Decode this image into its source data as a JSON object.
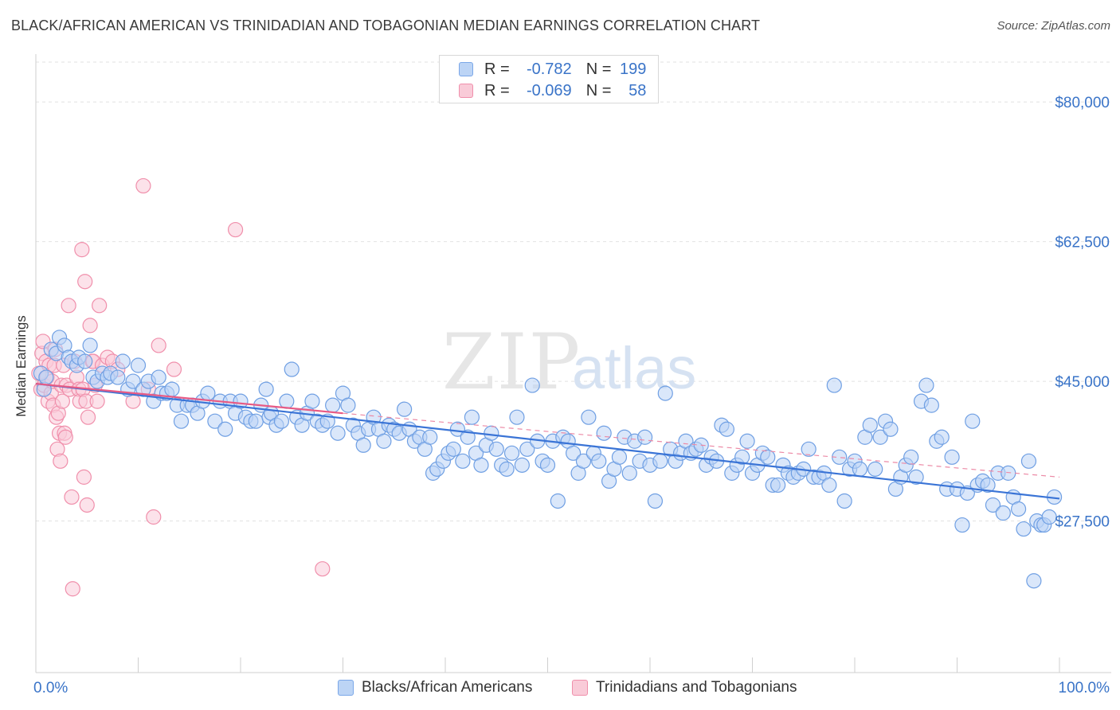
{
  "header": {
    "title": "BLACK/AFRICAN AMERICAN VS TRINIDADIAN AND TOBAGONIAN MEDIAN EARNINGS CORRELATION CHART",
    "source": "Source: ZipAtlas.com"
  },
  "watermark": {
    "zip": "ZIP",
    "atlas": "atlas"
  },
  "legend": {
    "r_label": "R =",
    "n_label": "N =",
    "series": [
      {
        "r": "-0.782",
        "n": "199",
        "color": "#7aa7e8",
        "fill": "#bcd4f5"
      },
      {
        "r": "-0.069",
        "n": "58",
        "color": "#f08fab",
        "fill": "#f9cbd8"
      }
    ]
  },
  "bottom_legend": {
    "blue": "Blacks/African Americans",
    "pink": "Trinidadians and Tobagonians"
  },
  "chart_data": {
    "type": "scatter",
    "title": "BLACK/AFRICAN AMERICAN VS TRINIDADIAN AND TOBAGONIAN MEDIAN EARNINGS CORRELATION CHART",
    "xlabel": "",
    "ylabel": "Median Earnings",
    "xlim": [
      0,
      100
    ],
    "ylim": [
      10000,
      85000
    ],
    "x_tick_labels": [
      "0.0%",
      "100.0%"
    ],
    "y_ticks": [
      27500,
      45000,
      62500,
      80000
    ],
    "y_tick_labels": [
      "$27,500",
      "$45,000",
      "$62,500",
      "$80,000"
    ],
    "grid": true,
    "series": [
      {
        "name": "Blacks/African Americans",
        "color": "#3a74d6",
        "point_color": "#7aa7e8",
        "trend": {
          "x": [
            0,
            100
          ],
          "y": [
            44700,
            30300
          ]
        },
        "points": [
          [
            0.5,
            46.0
          ],
          [
            0.8,
            44.0
          ],
          [
            1.0,
            45.5
          ],
          [
            1.5,
            49.0
          ],
          [
            2.0,
            48.5
          ],
          [
            2.3,
            50.5
          ],
          [
            2.8,
            49.5
          ],
          [
            3.2,
            48.0
          ],
          [
            3.5,
            47.5
          ],
          [
            4.0,
            47.0
          ],
          [
            4.2,
            48.0
          ],
          [
            4.8,
            47.5
          ],
          [
            5.3,
            49.5
          ],
          [
            5.6,
            45.5
          ],
          [
            6.0,
            45.0
          ],
          [
            6.5,
            46.0
          ],
          [
            7.0,
            45.5
          ],
          [
            7.3,
            46.0
          ],
          [
            8.0,
            45.5
          ],
          [
            8.5,
            47.5
          ],
          [
            9.0,
            44.0
          ],
          [
            9.5,
            45.0
          ],
          [
            10.0,
            47.0
          ],
          [
            10.5,
            44.0
          ],
          [
            11.0,
            45.0
          ],
          [
            11.5,
            42.5
          ],
          [
            12.0,
            45.5
          ],
          [
            12.3,
            43.5
          ],
          [
            12.8,
            43.5
          ],
          [
            13.3,
            44.0
          ],
          [
            13.8,
            42.0
          ],
          [
            14.2,
            40.0
          ],
          [
            14.8,
            42.0
          ],
          [
            15.3,
            42.0
          ],
          [
            15.8,
            41.0
          ],
          [
            16.3,
            42.5
          ],
          [
            16.8,
            43.5
          ],
          [
            17.5,
            40.0
          ],
          [
            18.0,
            42.5
          ],
          [
            18.5,
            39.0
          ],
          [
            19.0,
            42.5
          ],
          [
            19.5,
            41.0
          ],
          [
            20.0,
            42.5
          ],
          [
            20.5,
            40.5
          ],
          [
            21.0,
            40.0
          ],
          [
            21.5,
            40.0
          ],
          [
            22.0,
            42.0
          ],
          [
            22.5,
            44.0
          ],
          [
            22.8,
            40.5
          ],
          [
            23.0,
            41.0
          ],
          [
            23.5,
            39.5
          ],
          [
            24.0,
            40.0
          ],
          [
            24.5,
            42.5
          ],
          [
            25.0,
            46.5
          ],
          [
            25.5,
            40.5
          ],
          [
            26.0,
            39.5
          ],
          [
            26.5,
            41.0
          ],
          [
            27.0,
            42.5
          ],
          [
            27.5,
            40.0
          ],
          [
            28.0,
            39.5
          ],
          [
            28.5,
            40.0
          ],
          [
            29.0,
            42.0
          ],
          [
            29.5,
            38.5
          ],
          [
            30.0,
            43.5
          ],
          [
            30.5,
            42.0
          ],
          [
            31.0,
            39.5
          ],
          [
            31.5,
            38.5
          ],
          [
            32.0,
            37.0
          ],
          [
            32.5,
            39.0
          ],
          [
            33.0,
            40.5
          ],
          [
            33.5,
            39.0
          ],
          [
            34.0,
            37.5
          ],
          [
            34.5,
            39.5
          ],
          [
            35.0,
            39.0
          ],
          [
            35.5,
            38.5
          ],
          [
            36.0,
            41.5
          ],
          [
            36.5,
            39.0
          ],
          [
            37.0,
            37.5
          ],
          [
            37.5,
            38.0
          ],
          [
            38.0,
            36.5
          ],
          [
            38.5,
            38.0
          ],
          [
            38.8,
            33.5
          ],
          [
            39.2,
            34.0
          ],
          [
            39.8,
            35.0
          ],
          [
            40.3,
            36.0
          ],
          [
            40.8,
            36.5
          ],
          [
            41.2,
            39.0
          ],
          [
            41.7,
            35.0
          ],
          [
            42.2,
            38.0
          ],
          [
            42.6,
            40.5
          ],
          [
            43.0,
            36.0
          ],
          [
            43.5,
            34.5
          ],
          [
            44.0,
            37.0
          ],
          [
            44.5,
            38.5
          ],
          [
            45.0,
            36.5
          ],
          [
            45.5,
            34.5
          ],
          [
            46.0,
            34.0
          ],
          [
            46.5,
            36.0
          ],
          [
            47.0,
            40.5
          ],
          [
            47.5,
            34.5
          ],
          [
            48.0,
            36.5
          ],
          [
            48.5,
            44.5
          ],
          [
            49.0,
            37.5
          ],
          [
            49.5,
            35.0
          ],
          [
            50.0,
            34.5
          ],
          [
            50.5,
            37.5
          ],
          [
            51.0,
            30.0
          ],
          [
            51.5,
            38.0
          ],
          [
            52.0,
            37.5
          ],
          [
            52.5,
            36.0
          ],
          [
            53.0,
            33.5
          ],
          [
            53.5,
            35.0
          ],
          [
            54.0,
            40.5
          ],
          [
            54.5,
            36.0
          ],
          [
            55.0,
            35.0
          ],
          [
            55.5,
            38.5
          ],
          [
            56.0,
            32.5
          ],
          [
            56.5,
            34.0
          ],
          [
            57.0,
            35.5
          ],
          [
            57.5,
            38.0
          ],
          [
            58.0,
            33.5
          ],
          [
            58.5,
            37.5
          ],
          [
            59.0,
            35.0
          ],
          [
            59.5,
            38.0
          ],
          [
            60.0,
            34.5
          ],
          [
            60.5,
            30.0
          ],
          [
            61.0,
            35.0
          ],
          [
            61.5,
            43.5
          ],
          [
            62.0,
            36.5
          ],
          [
            62.5,
            35.0
          ],
          [
            63.0,
            36.0
          ],
          [
            63.5,
            37.5
          ],
          [
            64.0,
            36.0
          ],
          [
            64.5,
            36.5
          ],
          [
            65.0,
            37.0
          ],
          [
            65.5,
            34.5
          ],
          [
            66.0,
            35.5
          ],
          [
            66.5,
            35.0
          ],
          [
            67.0,
            39.5
          ],
          [
            67.5,
            39.0
          ],
          [
            68.0,
            33.5
          ],
          [
            68.5,
            34.5
          ],
          [
            69.0,
            35.5
          ],
          [
            69.5,
            37.5
          ],
          [
            70.0,
            33.5
          ],
          [
            70.5,
            34.5
          ],
          [
            71.0,
            36.0
          ],
          [
            71.5,
            35.5
          ],
          [
            72.0,
            32.0
          ],
          [
            72.5,
            32.0
          ],
          [
            73.0,
            34.5
          ],
          [
            73.5,
            33.5
          ],
          [
            74.0,
            33.0
          ],
          [
            74.5,
            33.5
          ],
          [
            75.0,
            34.0
          ],
          [
            75.5,
            36.5
          ],
          [
            76.0,
            33.0
          ],
          [
            76.5,
            33.0
          ],
          [
            77.0,
            33.5
          ],
          [
            77.5,
            32.0
          ],
          [
            78.0,
            44.5
          ],
          [
            78.5,
            35.5
          ],
          [
            79.0,
            30.0
          ],
          [
            79.5,
            34.0
          ],
          [
            80.0,
            35.0
          ],
          [
            80.5,
            34.0
          ],
          [
            81.0,
            38.0
          ],
          [
            81.5,
            39.5
          ],
          [
            82.0,
            34.0
          ],
          [
            82.5,
            38.0
          ],
          [
            83.0,
            40.0
          ],
          [
            83.5,
            39.0
          ],
          [
            84.0,
            31.5
          ],
          [
            84.5,
            33.0
          ],
          [
            85.0,
            34.5
          ],
          [
            85.5,
            35.5
          ],
          [
            86.0,
            33.0
          ],
          [
            86.5,
            42.5
          ],
          [
            87.0,
            44.5
          ],
          [
            87.5,
            42.0
          ],
          [
            88.0,
            37.5
          ],
          [
            88.5,
            38.0
          ],
          [
            89.0,
            31.5
          ],
          [
            89.5,
            35.5
          ],
          [
            90.0,
            31.5
          ],
          [
            90.5,
            27.0
          ],
          [
            91.0,
            31.0
          ],
          [
            91.5,
            40.0
          ],
          [
            92.0,
            32.0
          ],
          [
            92.5,
            32.5
          ],
          [
            93.0,
            32.0
          ],
          [
            93.5,
            29.5
          ],
          [
            94.0,
            33.5
          ],
          [
            94.5,
            28.5
          ],
          [
            95.0,
            33.5
          ],
          [
            95.5,
            30.5
          ],
          [
            96.0,
            29.0
          ],
          [
            96.5,
            26.5
          ],
          [
            97.0,
            35.0
          ],
          [
            97.5,
            20.0
          ],
          [
            97.8,
            27.5
          ],
          [
            98.2,
            27.0
          ],
          [
            98.5,
            27.0
          ],
          [
            99.0,
            28.0
          ],
          [
            99.5,
            30.5
          ]
        ]
      },
      {
        "name": "Trinidadians and Tobagonians",
        "color": "#e85a84",
        "point_color": "#f08fab",
        "trend": {
          "x": [
            0,
            30
          ],
          "y": [
            44700,
            41000
          ]
        },
        "trend_dashed": {
          "x": [
            30,
            100
          ],
          "y": [
            41000,
            33000
          ]
        },
        "points": [
          [
            0.3,
            46.0
          ],
          [
            0.5,
            44.0
          ],
          [
            0.6,
            48.5
          ],
          [
            0.7,
            50.0
          ],
          [
            0.8,
            44.5
          ],
          [
            1.0,
            47.5
          ],
          [
            1.1,
            45.5
          ],
          [
            1.2,
            42.5
          ],
          [
            1.3,
            47.0
          ],
          [
            1.5,
            43.5
          ],
          [
            1.6,
            45.0
          ],
          [
            1.7,
            42.0
          ],
          [
            1.8,
            47.0
          ],
          [
            1.9,
            49.0
          ],
          [
            2.0,
            40.5
          ],
          [
            2.1,
            36.5
          ],
          [
            2.2,
            41.0
          ],
          [
            2.3,
            38.5
          ],
          [
            2.4,
            35.0
          ],
          [
            2.5,
            44.5
          ],
          [
            2.6,
            42.5
          ],
          [
            2.7,
            47.0
          ],
          [
            2.8,
            38.5
          ],
          [
            2.9,
            38.0
          ],
          [
            3.0,
            44.5
          ],
          [
            3.2,
            54.5
          ],
          [
            3.3,
            44.0
          ],
          [
            3.5,
            30.5
          ],
          [
            3.6,
            19.0
          ],
          [
            3.8,
            47.5
          ],
          [
            4.0,
            45.5
          ],
          [
            4.2,
            44.0
          ],
          [
            4.3,
            42.5
          ],
          [
            4.5,
            61.5
          ],
          [
            4.6,
            44.0
          ],
          [
            4.7,
            33.0
          ],
          [
            4.8,
            57.5
          ],
          [
            4.9,
            42.5
          ],
          [
            5.0,
            29.5
          ],
          [
            5.1,
            40.5
          ],
          [
            5.3,
            52.0
          ],
          [
            5.5,
            47.5
          ],
          [
            5.6,
            47.5
          ],
          [
            5.8,
            44.5
          ],
          [
            6.0,
            42.5
          ],
          [
            6.2,
            54.5
          ],
          [
            6.5,
            47.0
          ],
          [
            7.0,
            48.0
          ],
          [
            7.5,
            47.5
          ],
          [
            8.0,
            46.5
          ],
          [
            9.5,
            42.5
          ],
          [
            10.5,
            69.5
          ],
          [
            11.0,
            44.0
          ],
          [
            11.5,
            28.0
          ],
          [
            12.0,
            49.5
          ],
          [
            13.5,
            46.5
          ],
          [
            19.5,
            64.0
          ],
          [
            28.0,
            21.5
          ]
        ]
      }
    ]
  }
}
